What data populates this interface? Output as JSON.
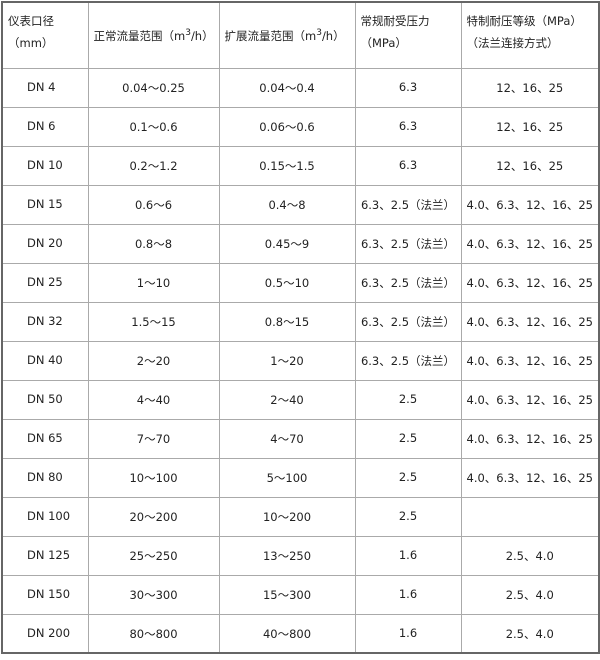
{
  "headers": [
    "仪表口径（mm）",
    "正常流量范围（m",
    "扩展流量范围（m",
    "常规耐受压力（MPa）",
    "特制耐压等级（MPa）（法兰连接方式）"
  ],
  "header_sup": "3",
  "header_suffix": "/h）",
  "rows": [
    [
      "DN 4",
      "0.04～0.25",
      "0.04～0.4",
      "6.3",
      "12、16、25"
    ],
    [
      "DN 6",
      "0.1～0.6",
      "0.06～0.6",
      "6.3",
      "12、16、25"
    ],
    [
      "DN 10",
      "0.2～1.2",
      "0.15～1.5",
      "6.3",
      "12、16、25"
    ],
    [
      "DN 15",
      "0.6～6",
      "0.4～8",
      "6.3、2.5（法兰）",
      "4.0、6.3、12、16、25"
    ],
    [
      "DN 20",
      "0.8～8",
      "0.45～9",
      "6.3、2.5（法兰）",
      "4.0、6.3、12、16、25"
    ],
    [
      "DN 25",
      "1～10",
      "0.5～10",
      "6.3、2.5（法兰）",
      "4.0、6.3、12、16、25"
    ],
    [
      "DN 32",
      "1.5～15",
      "0.8～15",
      "6.3、2.5（法兰）",
      "4.0、6.3、12、16、25"
    ],
    [
      "DN 40",
      "2～20",
      "1～20",
      "6.3、2.5（法兰）",
      "4.0、6.3、12、16、25"
    ],
    [
      "DN 50",
      "4～40",
      "2～40",
      "2.5",
      "4.0、6.3、12、16、25"
    ],
    [
      "DN 65",
      "7～70",
      "4～70",
      "2.5",
      "4.0、6.3、12、16、25"
    ],
    [
      "DN 80",
      "10～100",
      "5～100",
      "2.5",
      "4.0、6.3、12、16、25"
    ],
    [
      "DN 100",
      "20～200",
      "10～200",
      "2.5",
      ""
    ],
    [
      "DN 125",
      "25～250",
      "13～250",
      "1.6",
      "2.5、4.0"
    ],
    [
      "DN 150",
      "30～300",
      "15～300",
      "1.6",
      "2.5、4.0"
    ],
    [
      "DN 200",
      "80～800",
      "40～800",
      "1.6",
      "2.5、4.0"
    ]
  ]
}
